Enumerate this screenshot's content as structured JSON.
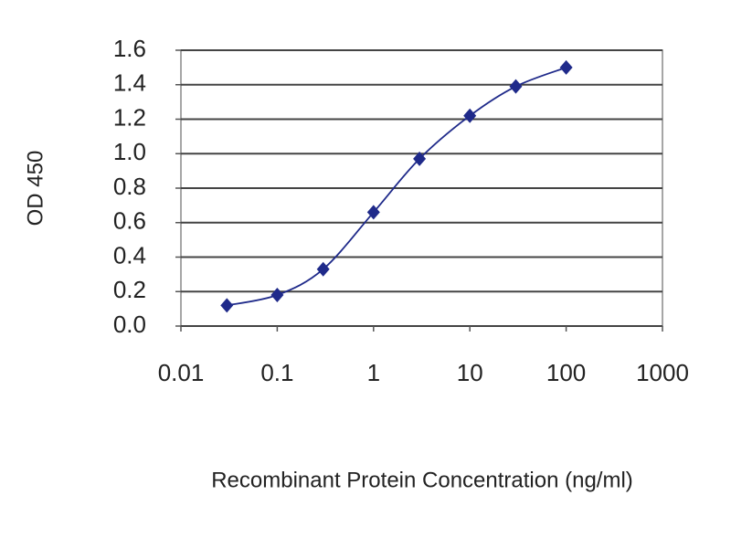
{
  "chart_data": {
    "type": "line",
    "xlabel": "Recombinant Protein Concentration (ng/ml)",
    "ylabel": "OD 450",
    "x": [
      0.03,
      0.1,
      0.3,
      1,
      3,
      10,
      30,
      100
    ],
    "values": [
      0.12,
      0.18,
      0.33,
      0.66,
      0.97,
      1.22,
      1.39,
      1.5
    ],
    "color": "#1f2a8a",
    "xscale": "log",
    "xlim": [
      0.01,
      1000
    ],
    "xticks": [
      0.01,
      0.1,
      1,
      10,
      100,
      1000
    ],
    "ylim": [
      0,
      1.6
    ],
    "yticks": [
      {
        "value": 0,
        "label": "0.0"
      },
      0.2,
      0.4,
      0.6,
      0.8,
      {
        "value": 1,
        "label": "1.0"
      },
      1.2,
      1.4,
      1.6
    ],
    "grid": true
  }
}
